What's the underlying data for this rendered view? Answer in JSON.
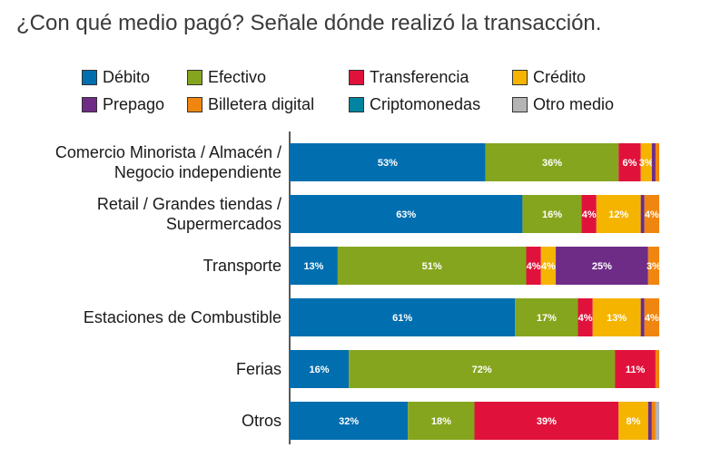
{
  "title": "¿Con qué medio pagó? Señale dónde realizó la transacción.",
  "chart_data": {
    "type": "bar",
    "orientation": "horizontal",
    "stacked": true,
    "title": "¿Con qué medio pagó? Señale dónde realizó la transacción.",
    "xlabel": "",
    "ylabel": "",
    "xlim": [
      0,
      100
    ],
    "grid": false,
    "legend_position": "top",
    "categories": [
      [
        "Comercio Minorista / Almacén /",
        "Negocio independiente"
      ],
      [
        "Retail / Grandes tiendas /",
        "Supermercados"
      ],
      [
        "Transporte"
      ],
      [
        "Estaciones de Combustible"
      ],
      [
        "Ferias"
      ],
      [
        "Otros"
      ]
    ],
    "series": [
      {
        "name": "Débito",
        "color": "#006EAF",
        "values": [
          53,
          63,
          13,
          61,
          16,
          32
        ],
        "labels": [
          "53%",
          "63%",
          "13%",
          "61%",
          "16%",
          "32%"
        ]
      },
      {
        "name": "Efectivo",
        "color": "#86A51E",
        "values": [
          36,
          16,
          51,
          17,
          72,
          18
        ],
        "labels": [
          "36%",
          "16%",
          "51%",
          "17%",
          "72%",
          "18%"
        ]
      },
      {
        "name": "Transferencia",
        "color": "#E0123C",
        "values": [
          6,
          4,
          4,
          4,
          11,
          39
        ],
        "labels": [
          "6%",
          "4%",
          "4%",
          "4%",
          "11%",
          "39%"
        ]
      },
      {
        "name": "Crédito",
        "color": "#F5B400",
        "values": [
          3,
          12,
          4,
          13,
          0,
          8
        ],
        "labels": [
          "3%",
          "12%",
          "4%",
          "13%",
          "",
          "8%"
        ]
      },
      {
        "name": "Prepago",
        "color": "#6E2C86",
        "values": [
          1,
          1,
          25,
          1,
          0,
          1
        ],
        "labels": [
          "",
          "",
          "25%",
          "",
          "",
          ""
        ]
      },
      {
        "name": "Billetera digital",
        "color": "#F0860F",
        "values": [
          1,
          4,
          3,
          4,
          1,
          1
        ],
        "labels": [
          "",
          "4%",
          "3%",
          "4%",
          "",
          ""
        ]
      },
      {
        "name": "Criptomonedas",
        "color": "#0085A0",
        "values": [
          0,
          0,
          0,
          0,
          0,
          0
        ],
        "labels": [
          "",
          "",
          "",
          "",
          "",
          ""
        ]
      },
      {
        "name": "Otro medio",
        "color": "#B4B4B4",
        "values": [
          0,
          0,
          0,
          0,
          0,
          1
        ],
        "labels": [
          "",
          "",
          "",
          "",
          "",
          ""
        ]
      }
    ]
  }
}
